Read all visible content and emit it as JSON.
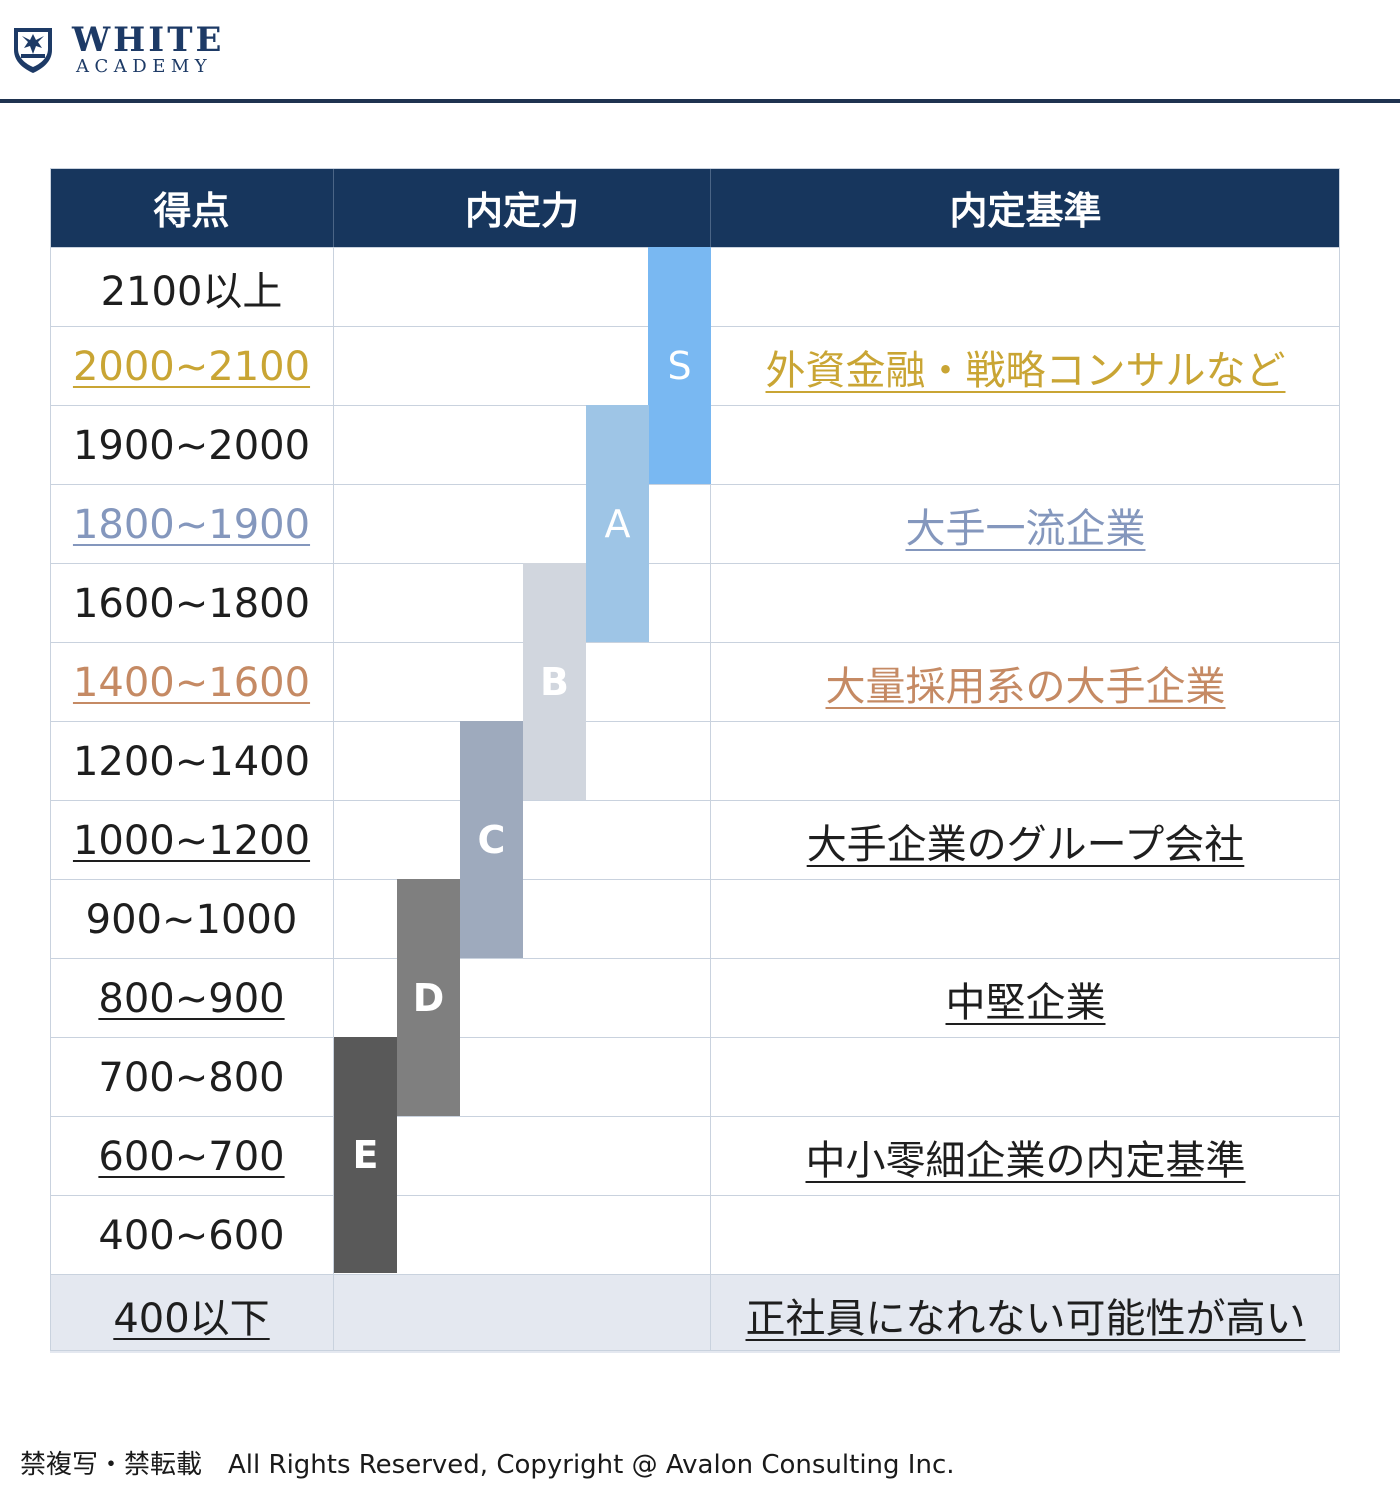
{
  "brand": {
    "line1": "WHITE",
    "line2": "ACADEMY"
  },
  "table": {
    "headers": [
      "得点",
      "内定力",
      "内定基準"
    ],
    "rows": [
      {
        "score": "2100以上",
        "criteria": ""
      },
      {
        "score": "2000~2100",
        "criteria": "外資金融・戦略コンサルなど"
      },
      {
        "score": "1900~2000",
        "criteria": ""
      },
      {
        "score": "1800~1900",
        "criteria": "大手一流企業"
      },
      {
        "score": "1600~1800",
        "criteria": ""
      },
      {
        "score": "1400~1600",
        "criteria": "大量採用系の大手企業"
      },
      {
        "score": "1200~1400",
        "criteria": ""
      },
      {
        "score": "1000~1200",
        "criteria": "大手企業のグループ会社"
      },
      {
        "score": "900~1000",
        "criteria": ""
      },
      {
        "score": "800~900",
        "criteria": "中堅企業"
      },
      {
        "score": "700~800",
        "criteria": ""
      },
      {
        "score": "600~700",
        "criteria": "中小零細企業の内定基準"
      },
      {
        "score": "400~600",
        "criteria": ""
      },
      {
        "score": "400以下",
        "criteria": "正社員になれない可能性が高い"
      }
    ],
    "bands": [
      {
        "label": "S",
        "color": "#79b8f2"
      },
      {
        "label": "A",
        "color": "#9ec5e6"
      },
      {
        "label": "B",
        "color": "#d1d6de"
      },
      {
        "label": "C",
        "color": "#9eaabd"
      },
      {
        "label": "D",
        "color": "#7f7f7f"
      },
      {
        "label": "E",
        "color": "#595959"
      }
    ]
  },
  "colors": {
    "header_bg": "#17365d",
    "rule": "#1f3350",
    "gold": "#c9a534",
    "steel": "#8497bd",
    "copper": "#c58a64"
  },
  "footer": {
    "text": "禁複写・禁転載　All Rights Reserved, Copyright @ Avalon Consulting Inc."
  }
}
